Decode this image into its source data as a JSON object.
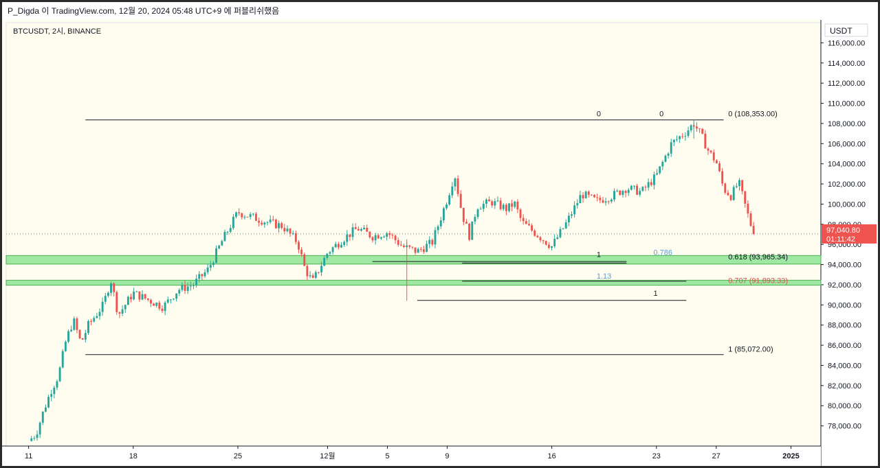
{
  "header": {
    "text": "P_Digda 이 TradingView.com, 12월 20, 2024 05:48 UTC+9 에 퍼블리쉬했음"
  },
  "symbol": {
    "text": "BTCUSDT, 2시, BINANCE"
  },
  "currency": "USDT",
  "price_label": {
    "price": "97,040.80",
    "timer": "01:11:42"
  },
  "colors": {
    "up": "#26a69a",
    "down": "#ef5350",
    "zone": "#7ee08a",
    "price_tag": "#ef5350",
    "fib_blue": "#5b9bd5",
    "fib_red": "#d9534f"
  },
  "chart_data": {
    "type": "candlestick",
    "title": "",
    "ylim": [
      76000,
      118000
    ],
    "y_ticks": [
      116000,
      114000,
      112000,
      110000,
      108000,
      106000,
      104000,
      102000,
      100000,
      98000,
      96000,
      94000,
      92000,
      90000,
      88000,
      86000,
      84000,
      82000,
      80000,
      78000
    ],
    "y_tick_labels": [
      "116,000.00",
      "114,000.00",
      "112,000.00",
      "110,000.00",
      "108,000.00",
      "106,000.00",
      "104,000.00",
      "102,000.00",
      "100,000.00",
      "98,000.00",
      "96,000.00",
      "94,000.00",
      "92,000.00",
      "90,000.00",
      "88,000.00",
      "86,000.00",
      "84,000.00",
      "82,000.00",
      "80,000.00",
      "78,000.00"
    ],
    "x_tick_labels": [
      "11",
      "18",
      "25",
      "12월",
      "5",
      "9",
      "16",
      "23",
      "27",
      "2025"
    ],
    "x_tick_pos": [
      0.0,
      7.0,
      14.0,
      20.0,
      24.0,
      28.0,
      35.0,
      42.0,
      46.0,
      51.0
    ],
    "last_price": 97040.8,
    "path": [
      [
        0,
        76500
      ],
      [
        0.5,
        77200
      ],
      [
        1.0,
        79500
      ],
      [
        1.5,
        81500
      ],
      [
        2.0,
        83000
      ],
      [
        2.5,
        86500
      ],
      [
        3.0,
        88500
      ],
      [
        3.5,
        86200
      ],
      [
        4.0,
        88000
      ],
      [
        5.0,
        90000
      ],
      [
        5.5,
        92500
      ],
      [
        6.0,
        89000
      ],
      [
        7.0,
        91200
      ],
      [
        8.0,
        90500
      ],
      [
        9.0,
        89800
      ],
      [
        10.0,
        91500
      ],
      [
        11.0,
        92000
      ],
      [
        12.0,
        93500
      ],
      [
        13.0,
        96500
      ],
      [
        14.0,
        99200
      ],
      [
        15.0,
        98700
      ],
      [
        16.0,
        98200
      ],
      [
        17.0,
        97800
      ],
      [
        18.0,
        96200
      ],
      [
        18.5,
        93500
      ],
      [
        19.0,
        92300
      ],
      [
        20.0,
        95200
      ],
      [
        21.0,
        96500
      ],
      [
        22.0,
        97600
      ],
      [
        23.0,
        96800
      ],
      [
        24.0,
        97200
      ],
      [
        25.0,
        95800
      ],
      [
        26.0,
        95300
      ],
      [
        27.0,
        96200
      ],
      [
        28.0,
        100500
      ],
      [
        28.5,
        103000
      ],
      [
        29.0,
        99000
      ],
      [
        29.5,
        96800
      ],
      [
        30.0,
        99800
      ],
      [
        31.0,
        100200
      ],
      [
        32.0,
        99500
      ],
      [
        32.5,
        100100
      ],
      [
        33.0,
        98200
      ],
      [
        34.0,
        97000
      ],
      [
        35.0,
        95800
      ],
      [
        36.0,
        98200
      ],
      [
        37.0,
        101000
      ],
      [
        38.0,
        100300
      ],
      [
        39.0,
        100800
      ],
      [
        40.0,
        101600
      ],
      [
        41.0,
        101200
      ],
      [
        42.0,
        102800
      ],
      [
        43.0,
        106000
      ],
      [
        44.0,
        107200
      ],
      [
        44.5,
        108000
      ],
      [
        45.0,
        106800
      ],
      [
        45.5,
        105200
      ],
      [
        46.0,
        104200
      ],
      [
        46.5,
        101500
      ],
      [
        47.0,
        100800
      ],
      [
        47.5,
        102200
      ],
      [
        48.0,
        99500
      ],
      [
        48.5,
        97040.8
      ]
    ],
    "x_min": -1.5,
    "x_max": 53.0,
    "horizontal_lines": [
      {
        "price": 108353,
        "x_start": 3.8,
        "x_end": 46.5
      },
      {
        "price": 85072,
        "x_start": 3.8,
        "x_end": 46.5
      },
      {
        "price": 94150,
        "x_start": 29.0,
        "x_end": 40.0
      },
      {
        "price": 94300,
        "x_start": 23.0,
        "x_end": 40.0
      },
      {
        "price": 90450,
        "x_start": 26.0,
        "x_end": 44.0
      },
      {
        "price": 92350,
        "x_start": 29.0,
        "x_end": 44.0
      }
    ],
    "zones": [
      {
        "low": 94050,
        "high": 94900
      },
      {
        "low": 91950,
        "high": 92450
      }
    ],
    "annotations": [
      {
        "text": "0",
        "price": 108700,
        "x": 38.0,
        "color": "#131722"
      },
      {
        "text": "0",
        "price": 108700,
        "x": 42.2,
        "color": "#131722"
      },
      {
        "text": "0 (108,353.00)",
        "price": 108700,
        "x": 46.8,
        "color": "#131722"
      },
      {
        "text": "1",
        "price": 94750,
        "x": 38.0,
        "color": "#131722"
      },
      {
        "text": "0.786",
        "price": 94950,
        "x": 41.8,
        "color": "#5b9bd5"
      },
      {
        "text": "0.618 (93,965.34)",
        "price": 94500,
        "x": 46.8,
        "color": "#131722"
      },
      {
        "text": "1.13",
        "price": 92600,
        "x": 38.0,
        "color": "#5b9bd5"
      },
      {
        "text": "0.707 (91,893.33)",
        "price": 92150,
        "x": 46.8,
        "color": "#d9534f"
      },
      {
        "text": "1",
        "price": 90900,
        "x": 41.8,
        "color": "#131722"
      },
      {
        "text": "1 (85,072.00)",
        "price": 85350,
        "x": 46.8,
        "color": "#131722"
      }
    ]
  }
}
